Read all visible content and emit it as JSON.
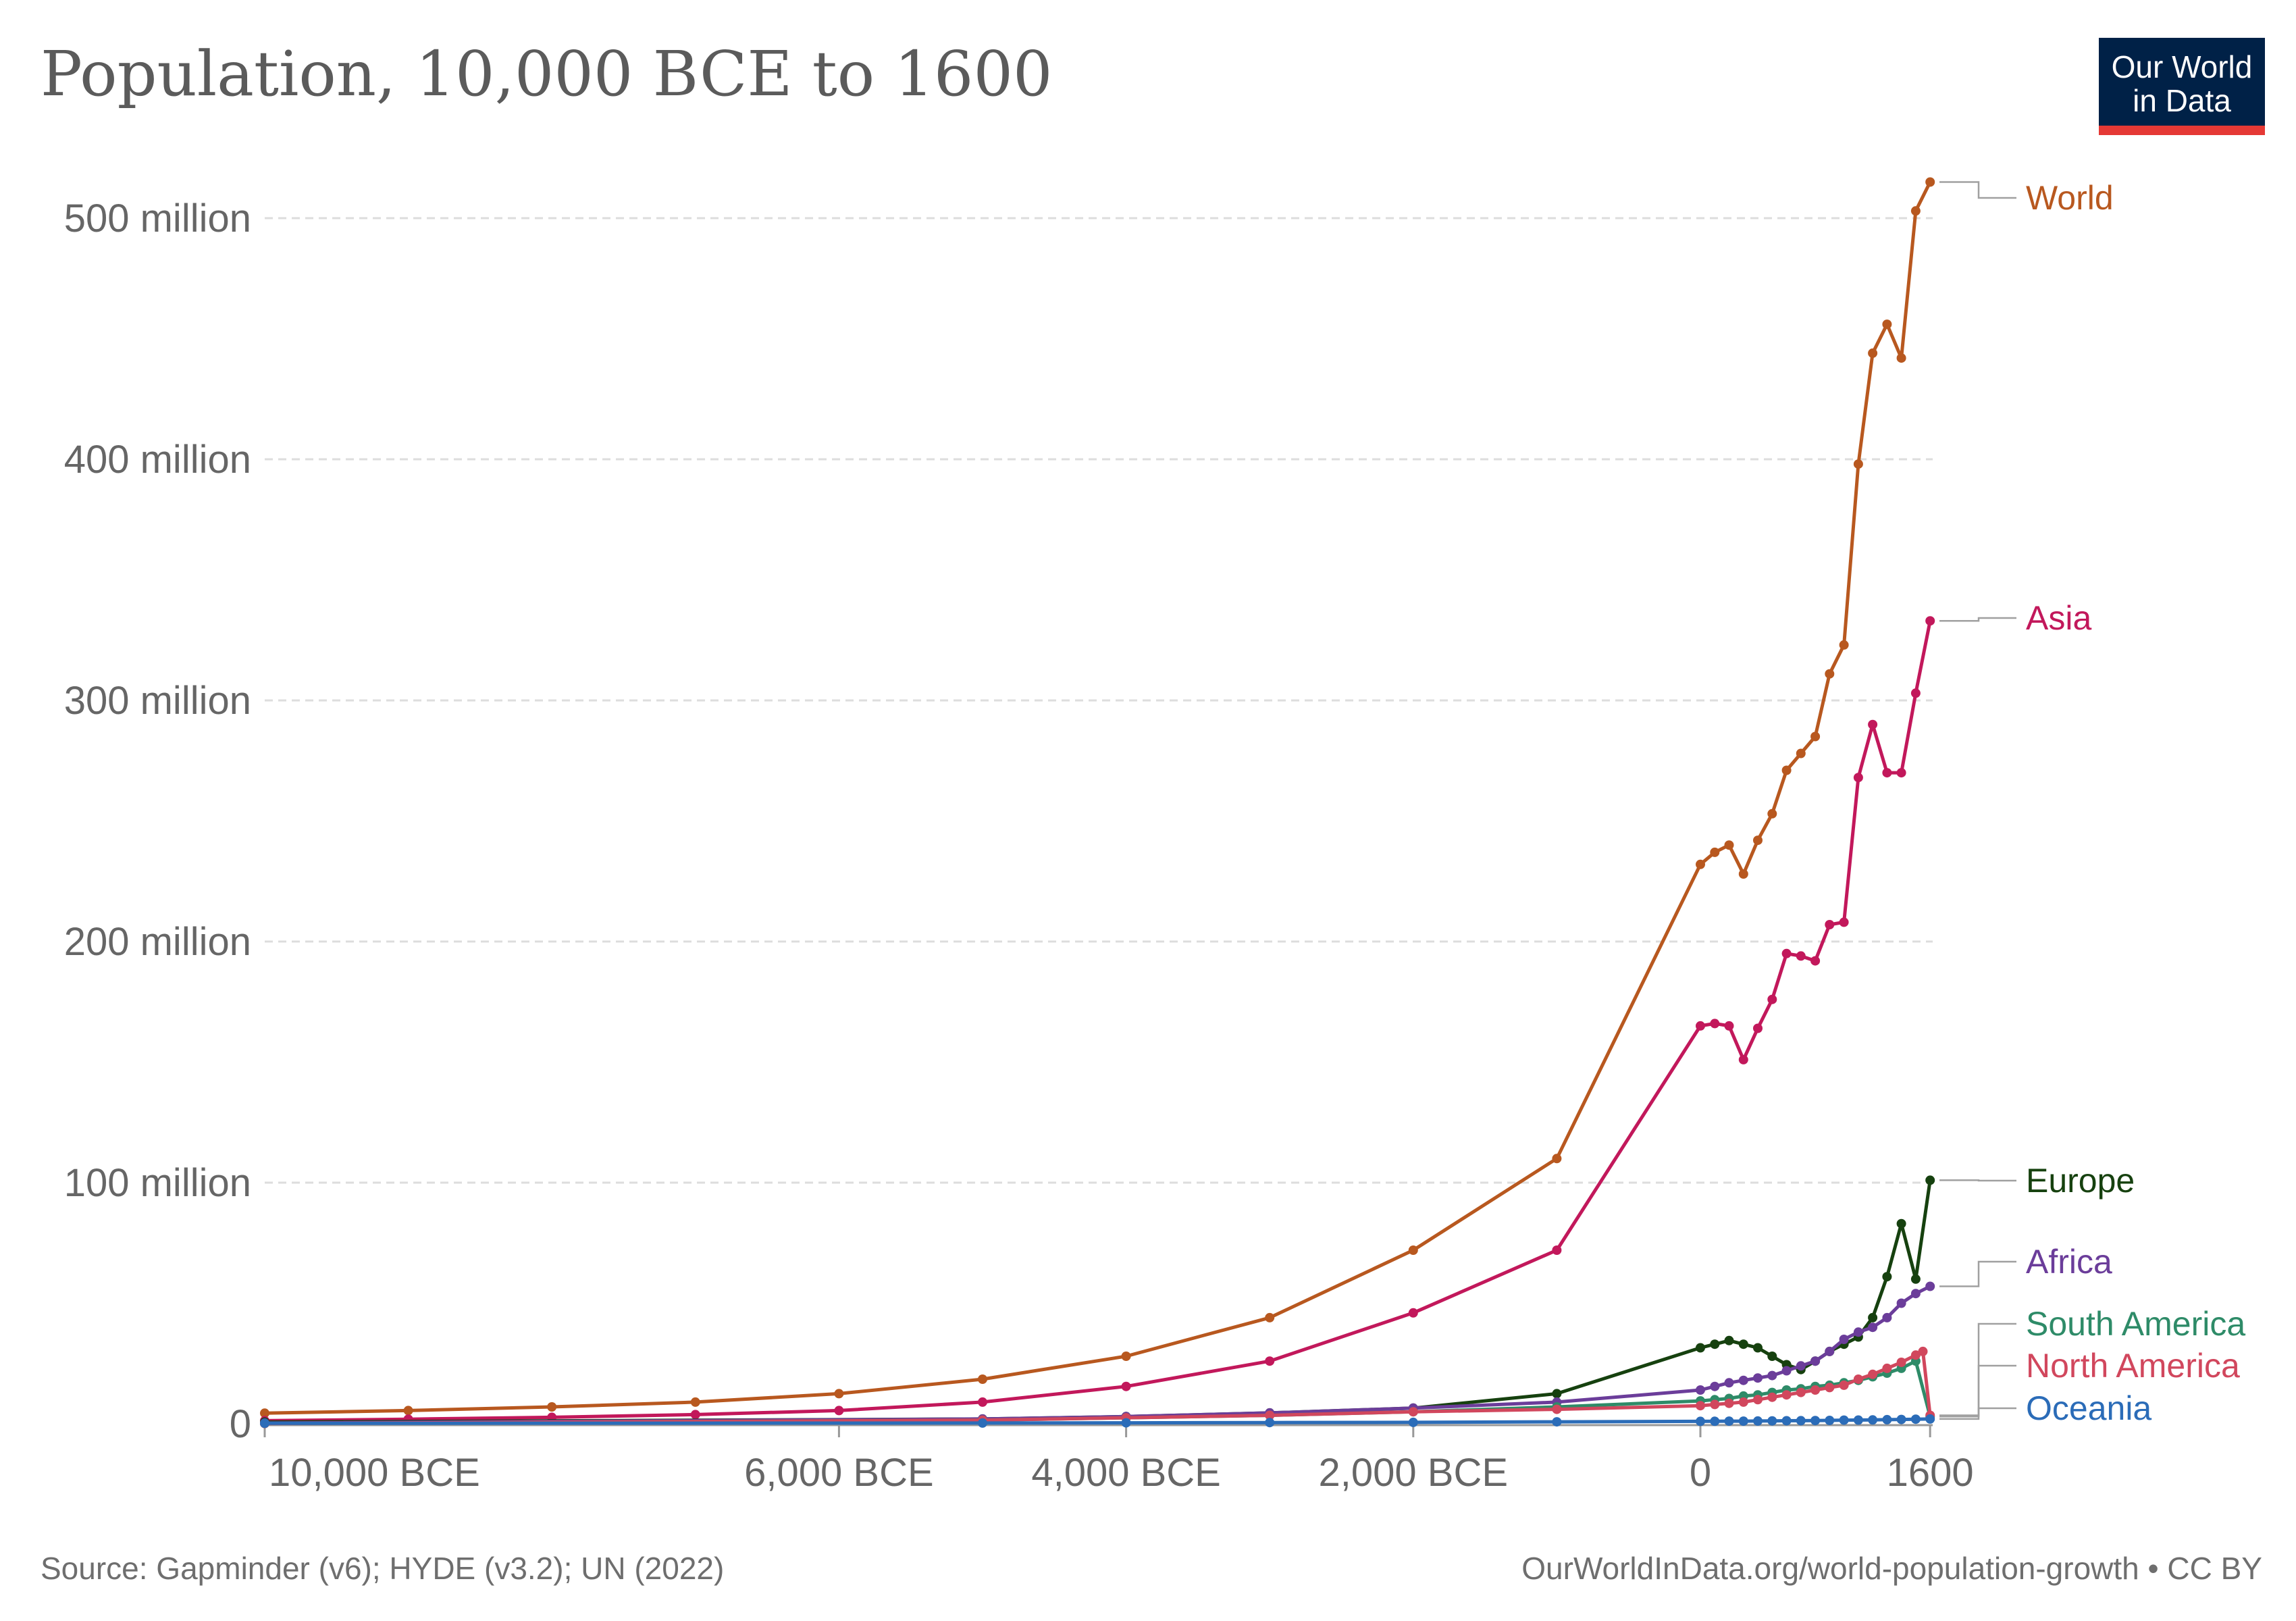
{
  "page": {
    "title": "Population, 10,000 BCE to 1600",
    "logo_line1": "Our World",
    "logo_line2": "in Data",
    "source": "Source: Gapminder (v6); HYDE (v3.2); UN (2022)",
    "credit": "OurWorldInData.org/world-population-growth • CC BY"
  },
  "colors": {
    "background": "#ffffff",
    "grid": "#dddddd",
    "axis_text": "#666666",
    "logo_bg": "#002147",
    "logo_bar": "#e53935"
  },
  "chart_data": {
    "type": "line",
    "title": "Population, 10,000 BCE to 1600",
    "xlabel": "",
    "ylabel": "",
    "xlim": [
      -10000,
      1600
    ],
    "ylim": [
      0,
      520000000
    ],
    "grid": true,
    "legend": "labels at line ends (right)",
    "x_ticks": [
      {
        "value": -10000,
        "label": "10,000 BCE"
      },
      {
        "value": -6000,
        "label": "6,000 BCE"
      },
      {
        "value": -4000,
        "label": "4,000 BCE"
      },
      {
        "value": -2000,
        "label": "2,000 BCE"
      },
      {
        "value": 0,
        "label": "0"
      },
      {
        "value": 1600,
        "label": "1600"
      }
    ],
    "y_ticks": [
      {
        "value": 0,
        "label": "0"
      },
      {
        "value": 100000000,
        "label": "100 million"
      },
      {
        "value": 200000000,
        "label": "200 million"
      },
      {
        "value": 300000000,
        "label": "300 million"
      },
      {
        "value": 400000000,
        "label": "400 million"
      },
      {
        "value": 500000000,
        "label": "500 million"
      }
    ],
    "series": [
      {
        "name": "World",
        "color": "#b8581f",
        "x": [
          -10000,
          -9000,
          -8000,
          -7000,
          -6000,
          -5000,
          -4000,
          -3000,
          -2000,
          -1000,
          0,
          100,
          200,
          300,
          400,
          500,
          600,
          700,
          800,
          900,
          1000,
          1100,
          1200,
          1300,
          1400,
          1500,
          1600
        ],
        "y": [
          4400000,
          5500000,
          7000000,
          9000000,
          12500000,
          18500000,
          28000000,
          44000000,
          72000000,
          110000000,
          232000000,
          237000000,
          240000000,
          228000000,
          242000000,
          253000000,
          271000000,
          278000000,
          285000000,
          311000000,
          323000000,
          398000000,
          444000000,
          456000000,
          442000000,
          503000000,
          515000000
        ]
      },
      {
        "name": "Asia",
        "color": "#c2185b",
        "x": [
          -10000,
          -9000,
          -8000,
          -7000,
          -6000,
          -5000,
          -4000,
          -3000,
          -2000,
          -1000,
          0,
          100,
          200,
          300,
          400,
          500,
          600,
          700,
          800,
          900,
          1000,
          1100,
          1200,
          1300,
          1400,
          1500,
          1600
        ],
        "y": [
          1300000,
          1900000,
          2700000,
          3800000,
          5500000,
          9000000,
          15500000,
          26000000,
          46000000,
          72000000,
          165000000,
          166000000,
          165000000,
          151000000,
          164000000,
          176000000,
          195000000,
          194000000,
          192000000,
          207000000,
          208000000,
          268000000,
          290000000,
          270000000,
          270000000,
          303000000,
          333000000
        ]
      },
      {
        "name": "Europe",
        "color": "#16410f",
        "x": [
          -10000,
          -5000,
          -4000,
          -3000,
          -2000,
          -1000,
          0,
          100,
          200,
          300,
          400,
          500,
          600,
          700,
          800,
          900,
          1000,
          1100,
          1200,
          1300,
          1400,
          1500,
          1600
        ],
        "y": [
          700000,
          2000000,
          3000000,
          4500000,
          6500000,
          12500000,
          31500000,
          33000000,
          34500000,
          33000000,
          31500000,
          28000000,
          24500000,
          22500000,
          26000000,
          30000000,
          33000000,
          36000000,
          44000000,
          61000000,
          83000000,
          60000000,
          101000000
        ]
      },
      {
        "name": "Africa",
        "color": "#6b3d9a",
        "x": [
          -10000,
          -5000,
          -4000,
          -3000,
          -2000,
          -1000,
          0,
          100,
          200,
          300,
          400,
          500,
          600,
          700,
          800,
          900,
          1000,
          1100,
          1200,
          1300,
          1400,
          1500,
          1600
        ],
        "y": [
          300000,
          2000000,
          3000000,
          4500000,
          6500000,
          9000000,
          14000000,
          15500000,
          17000000,
          18000000,
          19000000,
          20000000,
          22000000,
          24000000,
          26000000,
          30000000,
          35000000,
          38000000,
          40000000,
          44000000,
          50000000,
          54000000,
          57000000
        ]
      },
      {
        "name": "South America",
        "color": "#2e8b68",
        "x": [
          -10000,
          -5000,
          -4000,
          -3000,
          -2000,
          -1000,
          0,
          100,
          200,
          300,
          400,
          500,
          600,
          700,
          800,
          900,
          1000,
          1100,
          1200,
          1300,
          1400,
          1500,
          1600
        ],
        "y": [
          100000,
          1500000,
          2500000,
          3500000,
          5000000,
          7000000,
          9500000,
          10000000,
          10500000,
          11500000,
          12000000,
          13000000,
          14000000,
          14500000,
          15500000,
          16000000,
          17000000,
          18000000,
          19500000,
          21000000,
          23000000,
          26000000,
          3000000
        ]
      },
      {
        "name": "North America",
        "color": "#d1475d",
        "x": [
          -10000,
          -5000,
          -4000,
          -3000,
          -2000,
          -1000,
          0,
          100,
          200,
          300,
          400,
          500,
          600,
          700,
          800,
          900,
          1000,
          1100,
          1200,
          1300,
          1400,
          1500,
          1550,
          1600
        ],
        "y": [
          100000,
          1500000,
          2500000,
          3500000,
          5000000,
          6000000,
          7500000,
          8000000,
          8500000,
          9000000,
          10000000,
          11000000,
          12000000,
          13000000,
          14000000,
          15000000,
          16000000,
          18500000,
          20500000,
          23000000,
          25500000,
          28500000,
          30000000,
          3500000
        ]
      },
      {
        "name": "Oceania",
        "color": "#2b6cb8",
        "x": [
          -10000,
          -5000,
          -4000,
          -3000,
          -2000,
          -1000,
          0,
          100,
          200,
          300,
          400,
          500,
          600,
          700,
          800,
          900,
          1000,
          1100,
          1200,
          1300,
          1400,
          1500,
          1600
        ],
        "y": [
          200000,
          300000,
          400000,
          500000,
          600000,
          800000,
          1000000,
          1050000,
          1100000,
          1100000,
          1150000,
          1200000,
          1250000,
          1300000,
          1350000,
          1400000,
          1500000,
          1550000,
          1600000,
          1700000,
          1800000,
          1900000,
          2000000
        ]
      }
    ]
  }
}
